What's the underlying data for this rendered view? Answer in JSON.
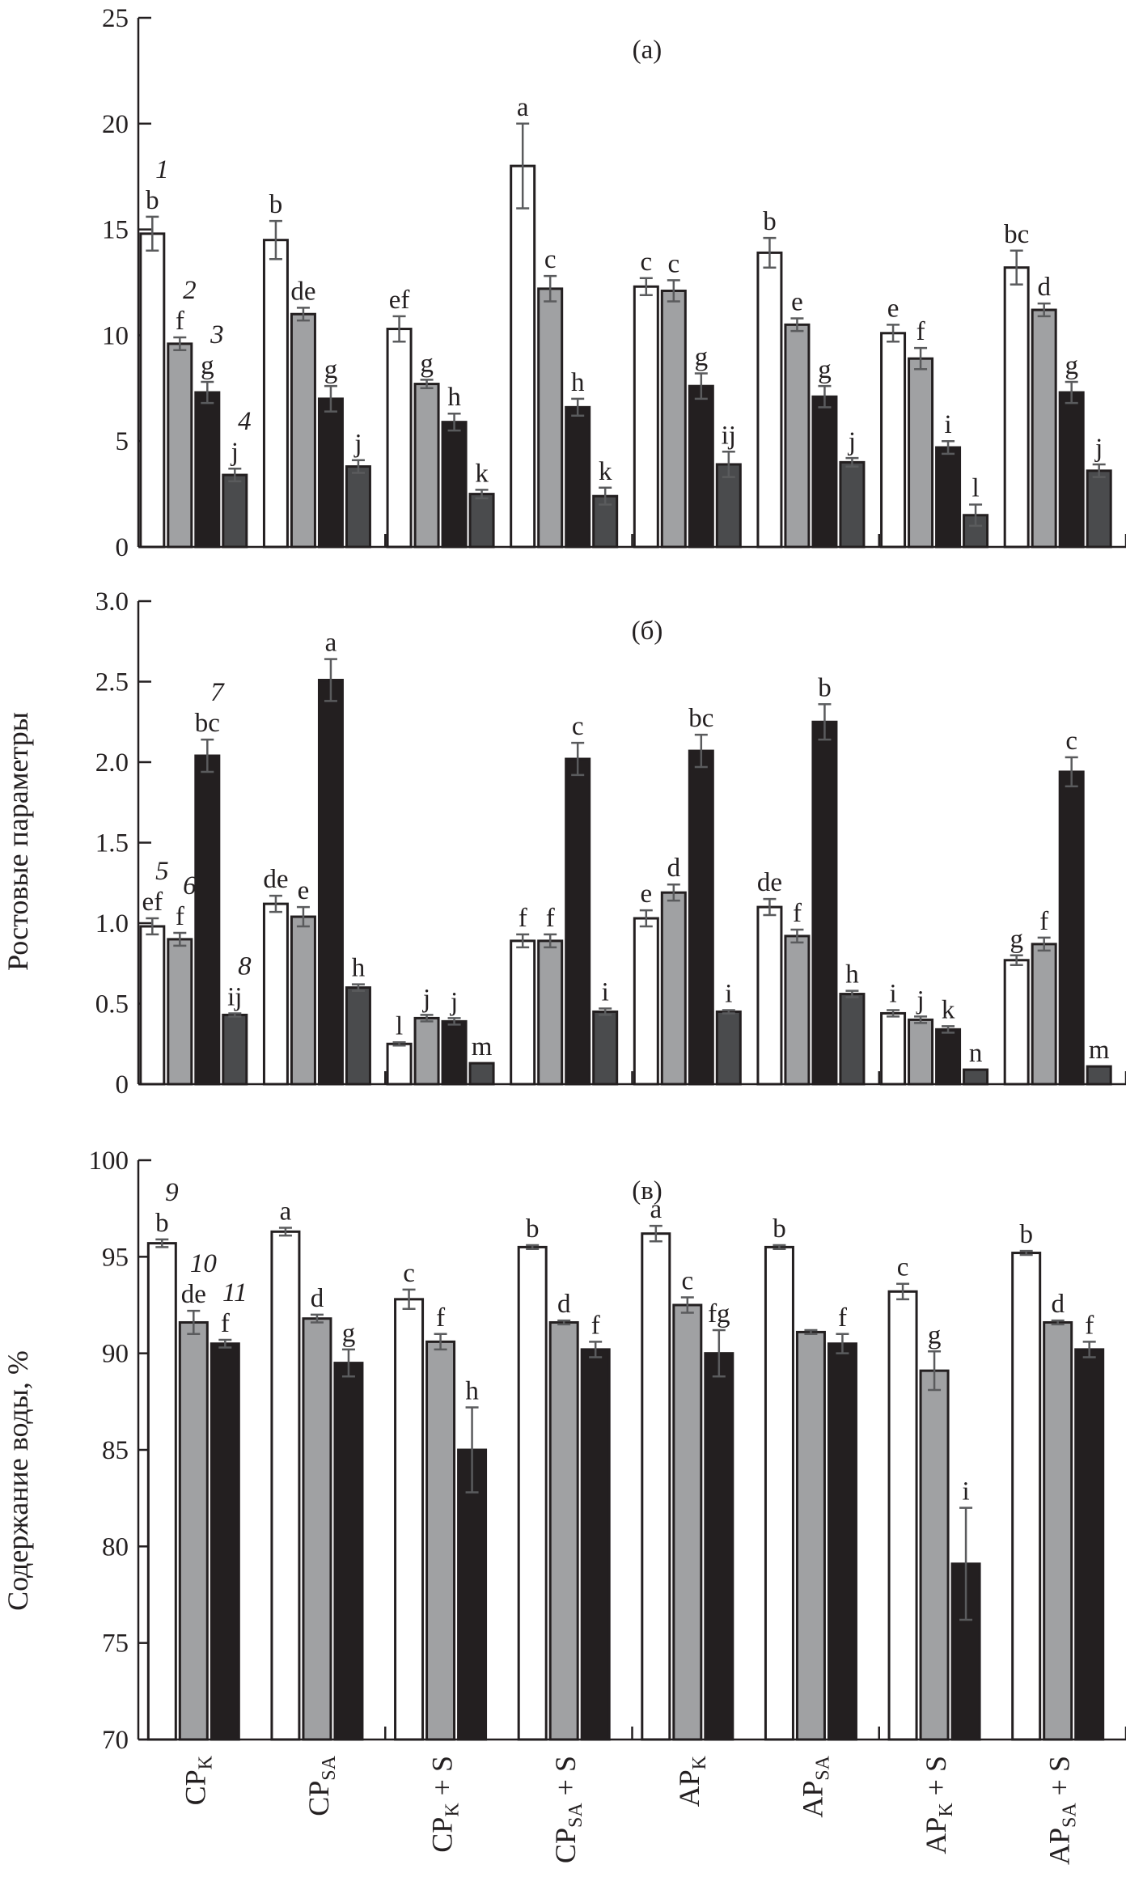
{
  "categories": [
    "CP_K",
    "CP_SA",
    "CP_K + S",
    "CP_SA + S",
    "AP_K",
    "AP_SA",
    "AP_K + S",
    "AP_SA + S"
  ],
  "category_labels": [
    {
      "main": "CP",
      "sub": "K",
      "suffix": ""
    },
    {
      "main": "CP",
      "sub": "SA",
      "suffix": ""
    },
    {
      "main": "CP",
      "sub": "K",
      "suffix": " + S"
    },
    {
      "main": "CP",
      "sub": "SA",
      "suffix": " + S"
    },
    {
      "main": "AP",
      "sub": "K",
      "suffix": ""
    },
    {
      "main": "AP",
      "sub": "SA",
      "suffix": ""
    },
    {
      "main": "AP",
      "sub": "K",
      "suffix": " + S"
    },
    {
      "main": "AP",
      "sub": "SA",
      "suffix": " + S"
    }
  ],
  "shared_ylabel": "Ростовые параметры",
  "colors": {
    "white": "#ffffff",
    "light_gray": "#a0a1a3",
    "black": "#231f20",
    "dark_gray": "#4a4b4d",
    "error_bar": "#5a5b5d",
    "outline": "#231f20"
  },
  "chart_data": [
    {
      "type": "bar",
      "panel": "(a)",
      "title": "(a)",
      "ylabel": "Ростовые параметры",
      "ylim": [
        0,
        25
      ],
      "yticks": [
        "0",
        "5",
        "10",
        "15",
        "20",
        "25"
      ],
      "categories": [
        "CP_K",
        "CP_SA",
        "CP_K + S",
        "CP_SA + S",
        "AP_K",
        "AP_SA",
        "AP_K + S",
        "AP_SA + S"
      ],
      "series": [
        {
          "name": "1",
          "color": "white",
          "values": [
            14.8,
            14.5,
            10.3,
            18.0,
            12.3,
            13.9,
            10.1,
            13.2
          ],
          "errors": [
            0.8,
            0.9,
            0.6,
            2.0,
            0.4,
            0.7,
            0.4,
            0.8
          ],
          "letters": [
            "b",
            "b",
            "ef",
            "a",
            "c",
            "b",
            "e",
            "bc"
          ]
        },
        {
          "name": "2",
          "color": "light_gray",
          "values": [
            9.6,
            11.0,
            7.7,
            12.2,
            12.1,
            10.5,
            8.9,
            11.2
          ],
          "errors": [
            0.3,
            0.3,
            0.2,
            0.6,
            0.5,
            0.3,
            0.5,
            0.3
          ],
          "letters": [
            "f",
            "de",
            "g",
            "c",
            "c",
            "e",
            "f",
            "d"
          ]
        },
        {
          "name": "3",
          "color": "black",
          "values": [
            7.3,
            7.0,
            5.9,
            6.6,
            7.6,
            7.1,
            4.7,
            7.3
          ],
          "errors": [
            0.5,
            0.6,
            0.4,
            0.4,
            0.6,
            0.5,
            0.3,
            0.5
          ],
          "letters": [
            "g",
            "g",
            "h",
            "h",
            "g",
            "g",
            "i",
            "g"
          ]
        },
        {
          "name": "4",
          "color": "dark_gray",
          "values": [
            3.4,
            3.8,
            2.5,
            2.4,
            3.9,
            4.0,
            1.5,
            3.6
          ],
          "errors": [
            0.3,
            0.3,
            0.2,
            0.4,
            0.6,
            0.2,
            0.5,
            0.3
          ],
          "letters": [
            "j",
            "j",
            "k",
            "k",
            "ij",
            "j",
            "l",
            "j"
          ]
        }
      ]
    },
    {
      "type": "bar",
      "panel": "(б)",
      "title": "(б)",
      "ylabel": "Ростовые параметры",
      "ylim": [
        0,
        3.0
      ],
      "yticks": [
        "0",
        "0.5",
        "1.0",
        "1.5",
        "2.0",
        "2.5",
        "3.0"
      ],
      "categories": [
        "CP_K",
        "CP_SA",
        "CP_K + S",
        "CP_SA + S",
        "AP_K",
        "AP_SA",
        "AP_K + S",
        "AP_SA + S"
      ],
      "series": [
        {
          "name": "5",
          "color": "white",
          "values": [
            0.98,
            1.12,
            0.25,
            0.89,
            1.03,
            1.1,
            0.44,
            0.77
          ],
          "errors": [
            0.05,
            0.05,
            0.01,
            0.04,
            0.05,
            0.05,
            0.02,
            0.03
          ],
          "letters": [
            "ef",
            "de",
            "l",
            "f",
            "e",
            "de",
            "i",
            "g"
          ]
        },
        {
          "name": "6",
          "color": "light_gray",
          "values": [
            0.9,
            1.04,
            0.41,
            0.89,
            1.19,
            0.92,
            0.4,
            0.87
          ],
          "errors": [
            0.04,
            0.06,
            0.02,
            0.04,
            0.05,
            0.04,
            0.02,
            0.04
          ],
          "letters": [
            "f",
            "e",
            "j",
            "f",
            "d",
            "f",
            "j",
            "f"
          ]
        },
        {
          "name": "7",
          "color": "black",
          "values": [
            2.04,
            2.51,
            0.39,
            2.02,
            2.07,
            2.25,
            0.34,
            1.94
          ],
          "errors": [
            0.1,
            0.13,
            0.02,
            0.1,
            0.1,
            0.11,
            0.02,
            0.09
          ],
          "letters": [
            "bc",
            "a",
            "j",
            "c",
            "bc",
            "b",
            "k",
            "c"
          ]
        },
        {
          "name": "8",
          "color": "dark_gray",
          "values": [
            0.43,
            0.6,
            0.13,
            0.45,
            0.45,
            0.56,
            0.09,
            0.11
          ],
          "errors": [
            0.01,
            0.02,
            0.0,
            0.02,
            0.01,
            0.02,
            0.0,
            0.0
          ],
          "letters": [
            "ij",
            "h",
            "m",
            "i",
            "i",
            "h",
            "n",
            "m"
          ]
        }
      ]
    },
    {
      "type": "bar",
      "panel": "(в)",
      "title": "(в)",
      "ylabel": "Содержание воды, %",
      "ylim": [
        70,
        100
      ],
      "yticks": [
        "70",
        "75",
        "80",
        "85",
        "90",
        "95",
        "100"
      ],
      "categories": [
        "CP_K",
        "CP_SA",
        "CP_K + S",
        "CP_SA + S",
        "AP_K",
        "AP_SA",
        "AP_K + S",
        "AP_SA + S"
      ],
      "series": [
        {
          "name": "9",
          "color": "white",
          "values": [
            95.7,
            96.3,
            92.8,
            95.5,
            96.2,
            95.5,
            93.2,
            95.2
          ],
          "errors": [
            0.2,
            0.2,
            0.5,
            0.1,
            0.4,
            0.1,
            0.4,
            0.1
          ],
          "letters": [
            "b",
            "a",
            "c",
            "b",
            "a",
            "b",
            "c",
            "b"
          ]
        },
        {
          "name": "10",
          "color": "light_gray",
          "values": [
            91.6,
            91.8,
            90.6,
            91.6,
            92.5,
            91.1,
            89.1,
            91.6
          ],
          "errors": [
            0.6,
            0.2,
            0.4,
            0.1,
            0.4,
            0.1,
            1.0,
            0.1
          ],
          "letters": [
            "de",
            "d",
            "f",
            "d",
            "c",
            "",
            "g",
            "d"
          ]
        },
        {
          "name": "11",
          "color": "black",
          "values": [
            90.5,
            89.5,
            85.0,
            90.2,
            90.0,
            90.5,
            79.1,
            90.2
          ],
          "errors": [
            0.2,
            0.7,
            2.2,
            0.4,
            1.2,
            0.5,
            2.9,
            0.4
          ],
          "letters": [
            "f",
            "g",
            "h",
            "f",
            "fg",
            "f",
            "i",
            "f"
          ]
        }
      ]
    }
  ]
}
